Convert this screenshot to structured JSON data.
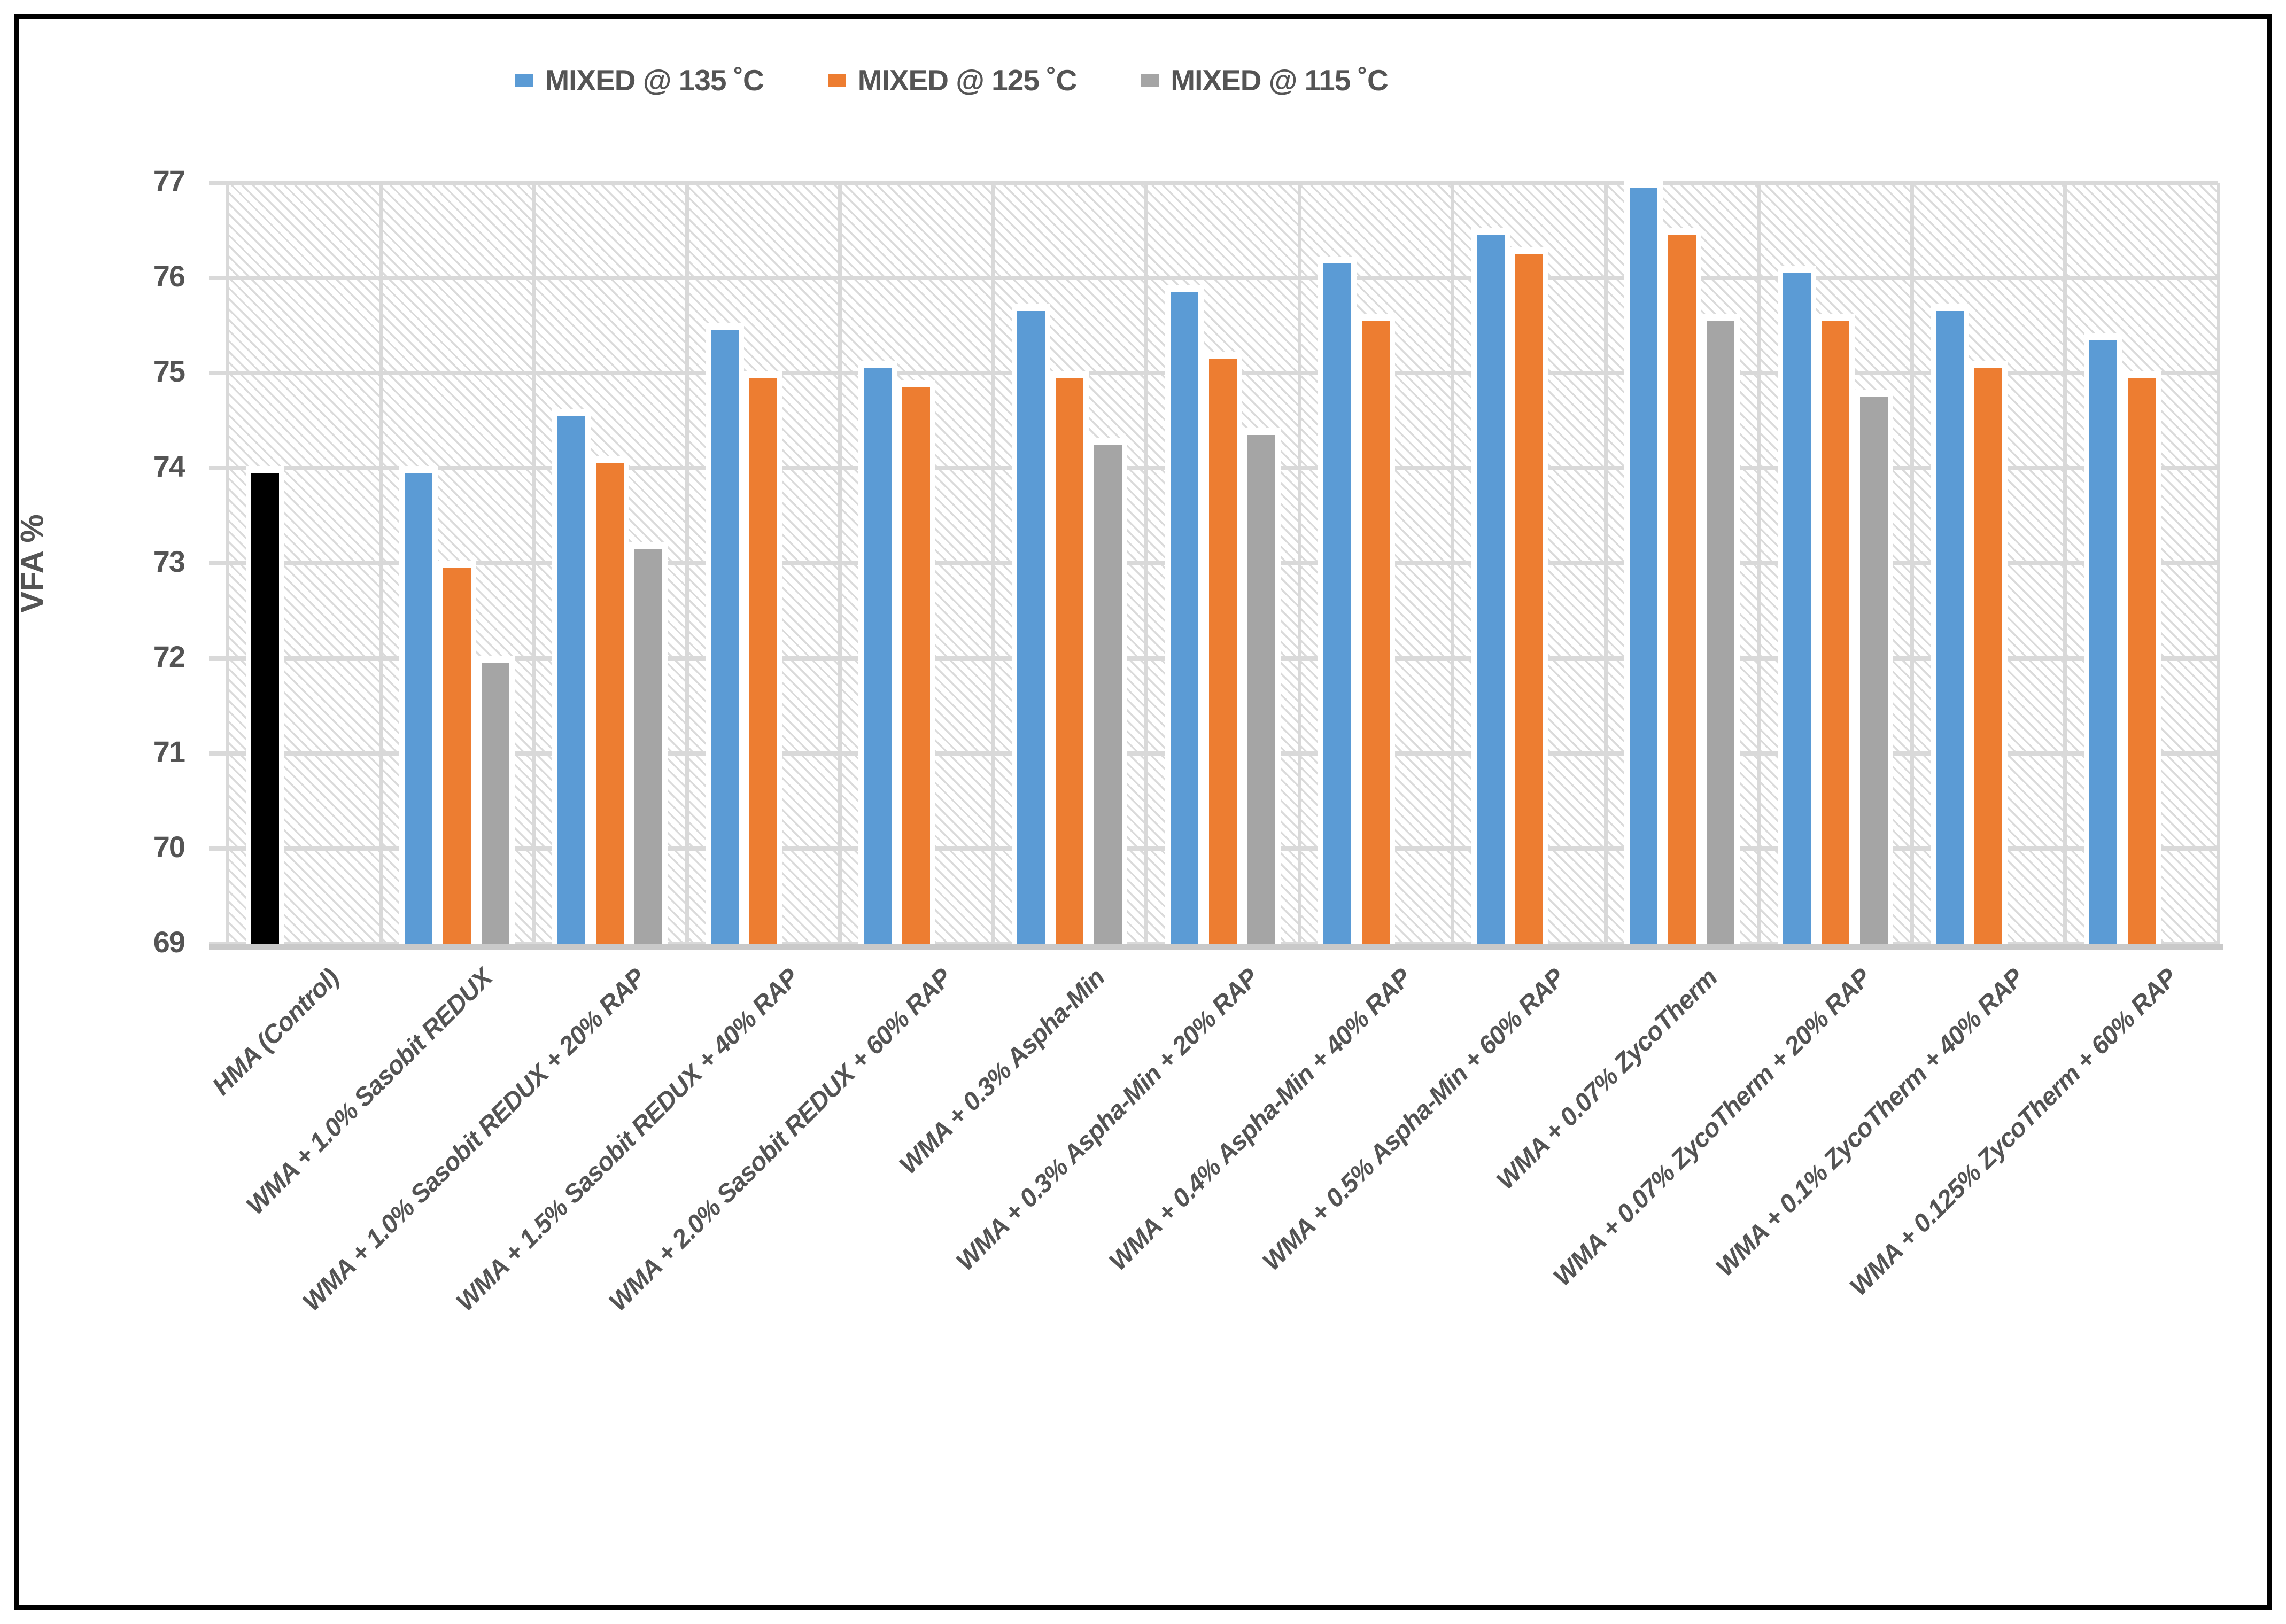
{
  "chart_data": {
    "type": "bar",
    "title": "",
    "xlabel": "",
    "ylabel": "VFA %",
    "ylim": [
      69,
      77
    ],
    "yticks": [
      69,
      70,
      71,
      72,
      73,
      74,
      75,
      76,
      77
    ],
    "grid": true,
    "legend_position": "top-center",
    "plot_background": "diagonal-hatch",
    "categories": [
      "HMA (Control)",
      "WMA + 1.0% Sasobit REDUX",
      "WMA + 1.0% Sasobit REDUX + 20% RAP",
      "WMA + 1.5% Sasobit REDUX + 40% RAP",
      "WMA + 2.0% Sasobit REDUX + 60% RAP",
      "WMA + 0.3% Aspha-Min",
      "WMA + 0.3% Aspha-Min + 20% RAP",
      "WMA + 0.4% Aspha-Min + 40% RAP",
      "WMA + 0.5% Aspha-Min + 60% RAP",
      "WMA + 0.07% ZycoTherm",
      "WMA + 0.07% ZycoTherm + 20% RAP",
      "WMA + 0.1% ZycoTherm + 40% RAP",
      "WMA + 0.125% ZycoTherm + 60% RAP"
    ],
    "series": [
      {
        "name": "MIXED @ 135 ˚C",
        "color": "#5B9BD5",
        "values": [
          73.95,
          73.95,
          74.55,
          75.45,
          75.05,
          75.65,
          75.85,
          76.15,
          76.45,
          76.95,
          76.05,
          75.65,
          75.35
        ]
      },
      {
        "name": "MIXED @ 125 ˚C",
        "color": "#ED7D31",
        "values": [
          null,
          72.95,
          74.05,
          74.95,
          74.85,
          74.95,
          75.15,
          75.55,
          76.25,
          76.45,
          75.55,
          75.05,
          74.95
        ]
      },
      {
        "name": "MIXED @ 115 ˚C",
        "color": "#A5A5A5",
        "values": [
          null,
          71.95,
          73.15,
          null,
          null,
          74.25,
          74.35,
          null,
          null,
          75.55,
          74.75,
          null,
          null
        ]
      }
    ],
    "control_bar": {
      "category_index": 0,
      "series_index": 0,
      "color": "#000000"
    }
  },
  "style": {
    "text_color": "#545454",
    "gridline_color": "#D9D9D9",
    "axis_line_color": "#C9C9C9",
    "hatch_color": "#DADADA",
    "frame_color": "#000000",
    "background": "#FFFFFF"
  }
}
